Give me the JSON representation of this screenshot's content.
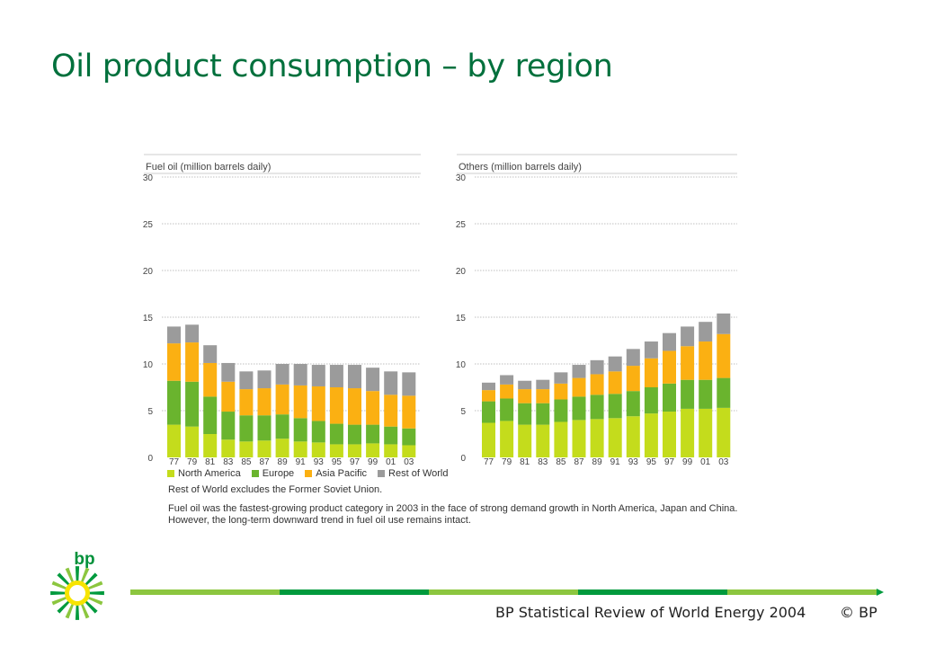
{
  "slide": {
    "title": "Oil product consumption – by region",
    "footer_source": "BP Statistical Review of World Energy 2004",
    "footer_copyright": "© BP",
    "logo_text": "bp"
  },
  "legend": [
    {
      "name": "North America",
      "color": "#c4dc1c"
    },
    {
      "name": "Europe",
      "color": "#6ab42e"
    },
    {
      "name": "Asia Pacific",
      "color": "#fbb012"
    },
    {
      "name": "Rest of World",
      "color": "#9b9b9b"
    }
  ],
  "note": "Rest of World excludes the Former Soviet Union.",
  "caption": "Fuel oil was the fastest-growing product category in 2003 in the face of strong demand growth in North America, Japan and China. However, the long-term downward trend in fuel oil use remains intact.",
  "chart_data": [
    {
      "type": "bar",
      "stacked": true,
      "title": "Fuel oil (million barrels daily)",
      "categories": [
        "77",
        "79",
        "81",
        "83",
        "85",
        "87",
        "89",
        "91",
        "93",
        "95",
        "97",
        "99",
        "01",
        "03"
      ],
      "ylim": [
        0,
        30
      ],
      "yticks": [
        0,
        5,
        10,
        15,
        20,
        25,
        30
      ],
      "grid": true,
      "series": [
        {
          "name": "North America",
          "values": [
            3.5,
            3.3,
            2.5,
            1.9,
            1.7,
            1.8,
            2.0,
            1.7,
            1.6,
            1.4,
            1.4,
            1.5,
            1.4,
            1.3
          ]
        },
        {
          "name": "Europe",
          "values": [
            4.7,
            4.8,
            4.0,
            3.0,
            2.8,
            2.7,
            2.6,
            2.5,
            2.3,
            2.2,
            2.1,
            2.0,
            1.9,
            1.8
          ]
        },
        {
          "name": "Asia Pacific",
          "values": [
            4.0,
            4.2,
            3.6,
            3.2,
            2.8,
            2.9,
            3.2,
            3.5,
            3.7,
            3.9,
            3.9,
            3.6,
            3.4,
            3.5
          ]
        },
        {
          "name": "Rest of World",
          "values": [
            1.8,
            1.9,
            1.9,
            2.0,
            1.9,
            1.9,
            2.2,
            2.3,
            2.3,
            2.4,
            2.5,
            2.5,
            2.5,
            2.5
          ]
        }
      ]
    },
    {
      "type": "bar",
      "stacked": true,
      "title": "Others (million barrels daily)",
      "categories": [
        "77",
        "79",
        "81",
        "83",
        "85",
        "87",
        "89",
        "91",
        "93",
        "95",
        "97",
        "99",
        "01",
        "03"
      ],
      "ylim": [
        0,
        30
      ],
      "yticks": [
        0,
        5,
        10,
        15,
        20,
        25,
        30
      ],
      "grid": true,
      "series": [
        {
          "name": "North America",
          "values": [
            3.7,
            3.9,
            3.5,
            3.5,
            3.8,
            4.0,
            4.1,
            4.2,
            4.4,
            4.7,
            4.9,
            5.2,
            5.2,
            5.3
          ]
        },
        {
          "name": "Europe",
          "values": [
            2.3,
            2.4,
            2.3,
            2.3,
            2.4,
            2.5,
            2.6,
            2.6,
            2.7,
            2.8,
            3.0,
            3.1,
            3.1,
            3.2
          ]
        },
        {
          "name": "Asia Pacific",
          "values": [
            1.2,
            1.5,
            1.5,
            1.5,
            1.7,
            2.0,
            2.2,
            2.4,
            2.7,
            3.1,
            3.5,
            3.6,
            4.1,
            4.7
          ]
        },
        {
          "name": "Rest of World",
          "values": [
            0.8,
            1.0,
            0.9,
            1.0,
            1.2,
            1.4,
            1.5,
            1.6,
            1.8,
            1.8,
            1.9,
            2.1,
            2.1,
            2.2
          ]
        }
      ]
    }
  ]
}
